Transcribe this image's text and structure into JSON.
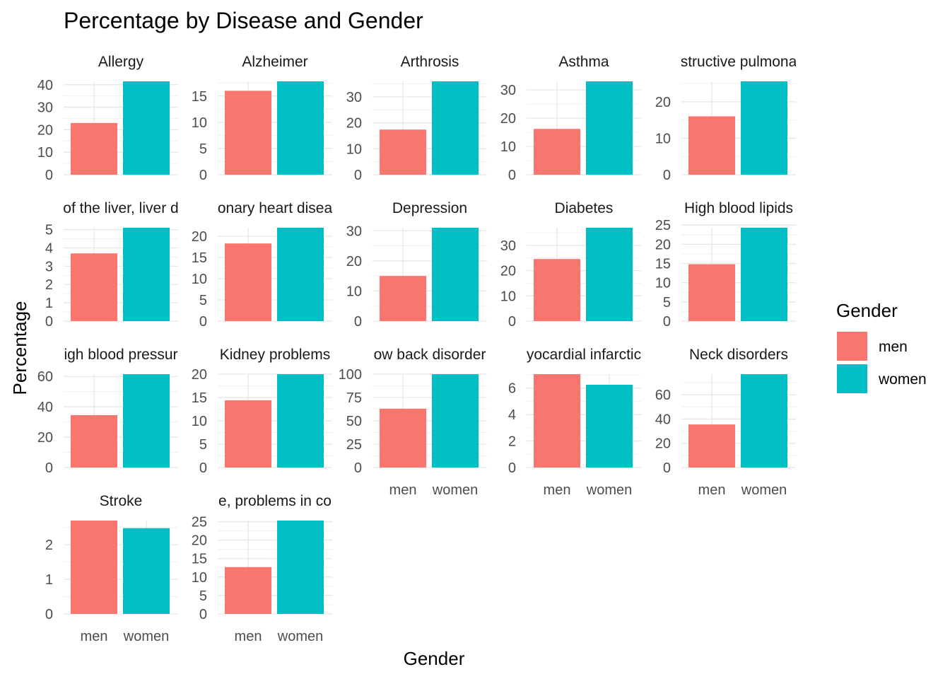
{
  "chart_data": {
    "type": "bar",
    "title": "Percentage by Disease and Gender",
    "xlabel": "Gender",
    "ylabel": "Percentage",
    "categories": [
      "men",
      "women"
    ],
    "legend": {
      "title": "Gender",
      "position": "right",
      "entries": [
        {
          "label": "men",
          "color": "#F8766D"
        },
        {
          "label": "women",
          "color": "#00BFC4"
        }
      ]
    },
    "grid": true,
    "panels": [
      {
        "label": "Allergy",
        "values": [
          23,
          41.5
        ],
        "ylim": [
          0,
          41.5
        ],
        "ticks": [
          0,
          10,
          20,
          30,
          40
        ]
      },
      {
        "label": "Alzheimer",
        "values": [
          16,
          17.8
        ],
        "ylim": [
          0,
          17.8
        ],
        "ticks": [
          0,
          5,
          10,
          15
        ]
      },
      {
        "label": "Arthrosis",
        "values": [
          17.4,
          36
        ],
        "ylim": [
          0,
          36
        ],
        "ticks": [
          0,
          10,
          20,
          30
        ]
      },
      {
        "label": "Asthma",
        "values": [
          16.2,
          33
        ],
        "ylim": [
          0,
          33
        ],
        "ticks": [
          0,
          10,
          20,
          30
        ]
      },
      {
        "label": "structive pulmona",
        "values": [
          16,
          25.6
        ],
        "ylim": [
          0,
          25.6
        ],
        "ticks": [
          0,
          10,
          20
        ]
      },
      {
        "label": "of the liver, liver d",
        "values": [
          3.7,
          5.1
        ],
        "ylim": [
          0,
          5.1
        ],
        "ticks": [
          0,
          1,
          2,
          3,
          4,
          5
        ]
      },
      {
        "label": "onary heart disea",
        "values": [
          18.3,
          22
        ],
        "ylim": [
          0,
          22
        ],
        "ticks": [
          0,
          5,
          10,
          15,
          20
        ]
      },
      {
        "label": "Depression",
        "values": [
          15,
          31
        ],
        "ylim": [
          0,
          31
        ],
        "ticks": [
          0,
          10,
          20,
          30
        ]
      },
      {
        "label": "Diabetes",
        "values": [
          24.6,
          37
        ],
        "ylim": [
          0,
          37
        ],
        "ticks": [
          0,
          10,
          20,
          30
        ]
      },
      {
        "label": "High blood lipids",
        "values": [
          14.8,
          24.3
        ],
        "ylim": [
          0,
          24.3
        ],
        "ticks": [
          0,
          5,
          10,
          15,
          20,
          25
        ]
      },
      {
        "label": "igh blood pressur",
        "values": [
          34.5,
          61.5
        ],
        "ylim": [
          0,
          61.5
        ],
        "ticks": [
          0,
          20,
          40,
          60
        ]
      },
      {
        "label": "Kidney problems",
        "values": [
          14.4,
          20
        ],
        "ylim": [
          0,
          20
        ],
        "ticks": [
          0,
          5,
          10,
          15,
          20
        ]
      },
      {
        "label": "ow back disorder",
        "values": [
          63,
          100
        ],
        "ylim": [
          0,
          100
        ],
        "ticks": [
          0,
          25,
          50,
          75,
          100
        ]
      },
      {
        "label": "yocardial infarctic",
        "values": [
          7.05,
          6.25
        ],
        "ylim": [
          0,
          7.05
        ],
        "ticks": [
          0,
          2,
          4,
          6
        ]
      },
      {
        "label": "Neck disorders",
        "values": [
          35.5,
          77
        ],
        "ylim": [
          0,
          77
        ],
        "ticks": [
          0,
          20,
          40,
          60
        ]
      },
      {
        "label": "Stroke",
        "values": [
          2.7,
          2.48
        ],
        "ylim": [
          0,
          2.7
        ],
        "ticks": [
          0,
          1,
          2
        ]
      },
      {
        "label": "e, problems in co",
        "values": [
          12.7,
          25.3
        ],
        "ylim": [
          0,
          25.3
        ],
        "ticks": [
          0,
          5,
          10,
          15,
          20,
          25
        ]
      }
    ]
  }
}
